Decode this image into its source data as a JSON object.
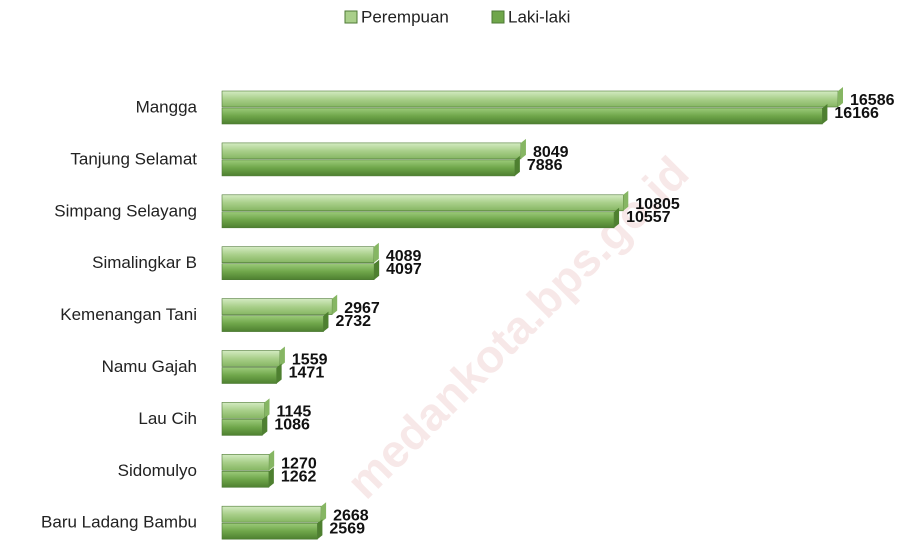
{
  "chart_data": {
    "type": "bar",
    "orientation": "horizontal",
    "categories": [
      "Mangga",
      "Tanjung Selamat",
      "Simpang Selayang",
      "Simalingkar B",
      "Kemenangan Tani",
      "Namu Gajah",
      "Lau Cih",
      "Sidomulyo",
      "Baru Ladang Bambu"
    ],
    "series": [
      {
        "name": "Perempuan",
        "color": "#a9cf8a",
        "values": [
          16586,
          8049,
          10805,
          4089,
          2967,
          1559,
          1145,
          1270,
          2668
        ]
      },
      {
        "name": "Laki-laki",
        "color": "#6fa64a",
        "values": [
          16166,
          7886,
          10557,
          4097,
          2732,
          1471,
          1086,
          1262,
          2569
        ]
      }
    ],
    "legend": "top",
    "watermark": "medankota.bps.go.id"
  }
}
